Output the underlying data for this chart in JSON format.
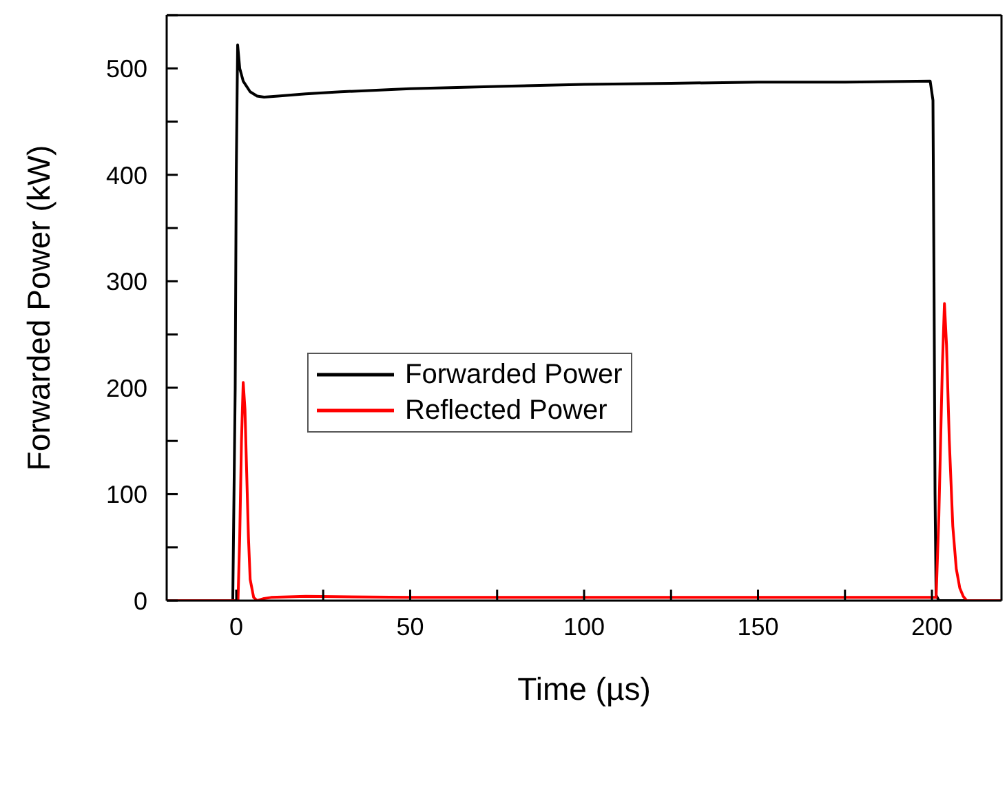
{
  "chart_data": {
    "type": "line",
    "xlabel": "Time (µs)",
    "ylabel": "Forwarded Power (kW)",
    "xlim": [
      -20,
      220
    ],
    "xticks": [
      0,
      {
        "value": 25,
        "label": null
      },
      50,
      {
        "value": 75,
        "label": null
      },
      100,
      {
        "value": 125,
        "label": null
      },
      150,
      {
        "value": 175,
        "label": null
      },
      200
    ],
    "ylim": [
      0,
      550
    ],
    "yticks": [
      0,
      {
        "value": 50,
        "label": null
      },
      100,
      {
        "value": 150,
        "label": null
      },
      200,
      {
        "value": 250,
        "label": null
      },
      300,
      {
        "value": 350,
        "label": null
      },
      400,
      {
        "value": 450,
        "label": null
      },
      500,
      {
        "value": 550,
        "label": null
      }
    ],
    "legend": "left",
    "marker": "none",
    "line_style": "solid",
    "series": [
      {
        "name": "Forwarded Power",
        "color": "#000000",
        "x": [
          -20,
          -1,
          -0.3,
          0,
          0.4,
          1,
          2,
          4,
          6,
          8,
          12,
          20,
          30,
          50,
          75,
          100,
          125,
          150,
          175,
          199.5,
          200.3,
          200.6,
          200.9,
          201.2,
          202,
          220
        ],
        "values": [
          0,
          0,
          200,
          400,
          522,
          500,
          488,
          478,
          474,
          473,
          474,
          476,
          478,
          481,
          483,
          485,
          486,
          487,
          487,
          488,
          470,
          300,
          100,
          5,
          0,
          0
        ]
      },
      {
        "name": "Reflected Power",
        "color": "#ff0000",
        "x": [
          -20,
          0.5,
          1,
          1.5,
          2,
          2.5,
          3,
          3.5,
          4,
          5,
          6,
          8,
          10,
          20,
          50,
          100,
          150,
          200,
          201.2,
          202,
          203,
          203.6,
          204.2,
          205,
          206,
          207,
          208,
          209,
          210,
          220
        ],
        "values": [
          0,
          0,
          60,
          150,
          205,
          180,
          120,
          60,
          20,
          3,
          0,
          2,
          3,
          4,
          3,
          3,
          3,
          3,
          3,
          80,
          220,
          279,
          240,
          150,
          70,
          30,
          12,
          4,
          0,
          0
        ]
      }
    ]
  }
}
